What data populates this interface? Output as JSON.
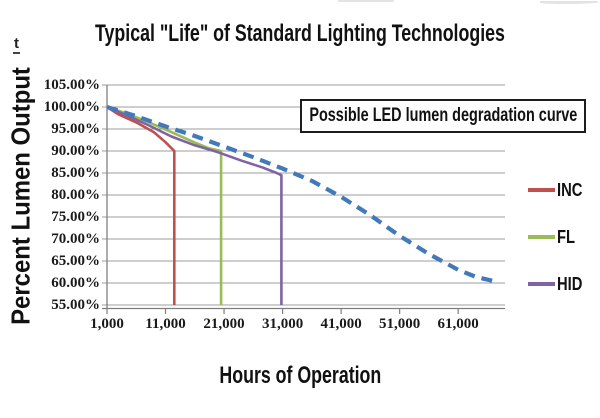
{
  "artifacts": {
    "stray_glyph": "t"
  },
  "chart": {
    "title": "Typical \"Life\" of Standard Lighting Technologies",
    "y_axis_title": "Percent Lumen Output",
    "x_axis_title": "Hours of Operation",
    "annotation": "Possible LED lumen degradation curve"
  },
  "colors": {
    "inc": "#c0504d",
    "fl": "#9bbb59",
    "hid": "#8064a2",
    "led": "#4279b8",
    "gridline": "#9c9c9c",
    "axis": "#7f7f7f",
    "text": "#111111",
    "annotation_border": "#1c1c1c",
    "background": "#ffffff"
  },
  "legend": {
    "position": "right",
    "items": [
      {
        "label": "INC",
        "color": "#c0504d"
      },
      {
        "label": "FL",
        "color": "#9bbb59"
      },
      {
        "label": "HID",
        "color": "#8064a2"
      }
    ]
  },
  "chart_data": {
    "type": "line",
    "title": "Typical \"Life\" of Standard Lighting Technologies",
    "xlabel": "Hours of Operation",
    "ylabel": "Percent Lumen Output",
    "xlim": [
      1000,
      69000
    ],
    "ylim": [
      55,
      105
    ],
    "grid": true,
    "legend_position": "right",
    "annotation": "Possible LED lumen degradation curve",
    "y_ticks": [
      {
        "value": 105,
        "label": "105.00%"
      },
      {
        "value": 100,
        "label": "100.00%"
      },
      {
        "value": 95,
        "label": "95.00%"
      },
      {
        "value": 90,
        "label": "90.00%"
      },
      {
        "value": 85,
        "label": "85.00%"
      },
      {
        "value": 80,
        "label": "80.00%"
      },
      {
        "value": 75,
        "label": "75.00%"
      },
      {
        "value": 70,
        "label": "70.00%"
      },
      {
        "value": 65,
        "label": "65.00%"
      },
      {
        "value": 60,
        "label": "60.00%"
      },
      {
        "value": 55,
        "label": "55.00%"
      }
    ],
    "x_ticks": [
      {
        "value": 1000,
        "label": "1,000"
      },
      {
        "value": 11000,
        "label": "11,000"
      },
      {
        "value": 21000,
        "label": "21,000"
      },
      {
        "value": 31000,
        "label": "31,000"
      },
      {
        "value": 41000,
        "label": "41,000"
      },
      {
        "value": 51000,
        "label": "51,000"
      },
      {
        "value": 61000,
        "label": "61,000"
      }
    ],
    "series": [
      {
        "name": "INC",
        "color": "#c0504d",
        "style": "solid",
        "width": 2.6,
        "in_legend": true,
        "points": [
          [
            1000,
            100
          ],
          [
            3000,
            98.3
          ],
          [
            6000,
            96.5
          ],
          [
            9000,
            94.3
          ],
          [
            11000,
            92.0
          ],
          [
            12500,
            90.0
          ],
          [
            12500,
            55
          ]
        ]
      },
      {
        "name": "FL",
        "color": "#9bbb59",
        "style": "solid",
        "width": 2.6,
        "in_legend": true,
        "points": [
          [
            1000,
            100
          ],
          [
            4000,
            98.7
          ],
          [
            8000,
            96.6
          ],
          [
            12000,
            94.3
          ],
          [
            16000,
            91.9
          ],
          [
            18500,
            90.6
          ],
          [
            20500,
            90.0
          ],
          [
            20500,
            55
          ]
        ]
      },
      {
        "name": "HID",
        "color": "#8064a2",
        "style": "solid",
        "width": 2.6,
        "in_legend": true,
        "points": [
          [
            1000,
            100
          ],
          [
            4000,
            98.3
          ],
          [
            8000,
            95.9
          ],
          [
            12000,
            93.3
          ],
          [
            16000,
            91.3
          ],
          [
            20000,
            89.7
          ],
          [
            24000,
            87.8
          ],
          [
            27500,
            86.3
          ],
          [
            30000,
            85.0
          ],
          [
            30800,
            84.5
          ],
          [
            30800,
            55
          ]
        ]
      },
      {
        "name": "LED (possible degradation curve)",
        "color": "#4279b8",
        "style": "dashed",
        "width": 4.2,
        "in_legend": false,
        "points": [
          [
            1000,
            100
          ],
          [
            6000,
            97.9
          ],
          [
            11000,
            95.6
          ],
          [
            16000,
            93.4
          ],
          [
            21000,
            91.0
          ],
          [
            26000,
            88.6
          ],
          [
            31000,
            86.0
          ],
          [
            36000,
            83.2
          ],
          [
            41000,
            79.6
          ],
          [
            46000,
            75.4
          ],
          [
            51000,
            70.7
          ],
          [
            56000,
            66.6
          ],
          [
            61000,
            63.0
          ],
          [
            64000,
            61.4
          ],
          [
            67500,
            60.3
          ]
        ]
      }
    ]
  }
}
